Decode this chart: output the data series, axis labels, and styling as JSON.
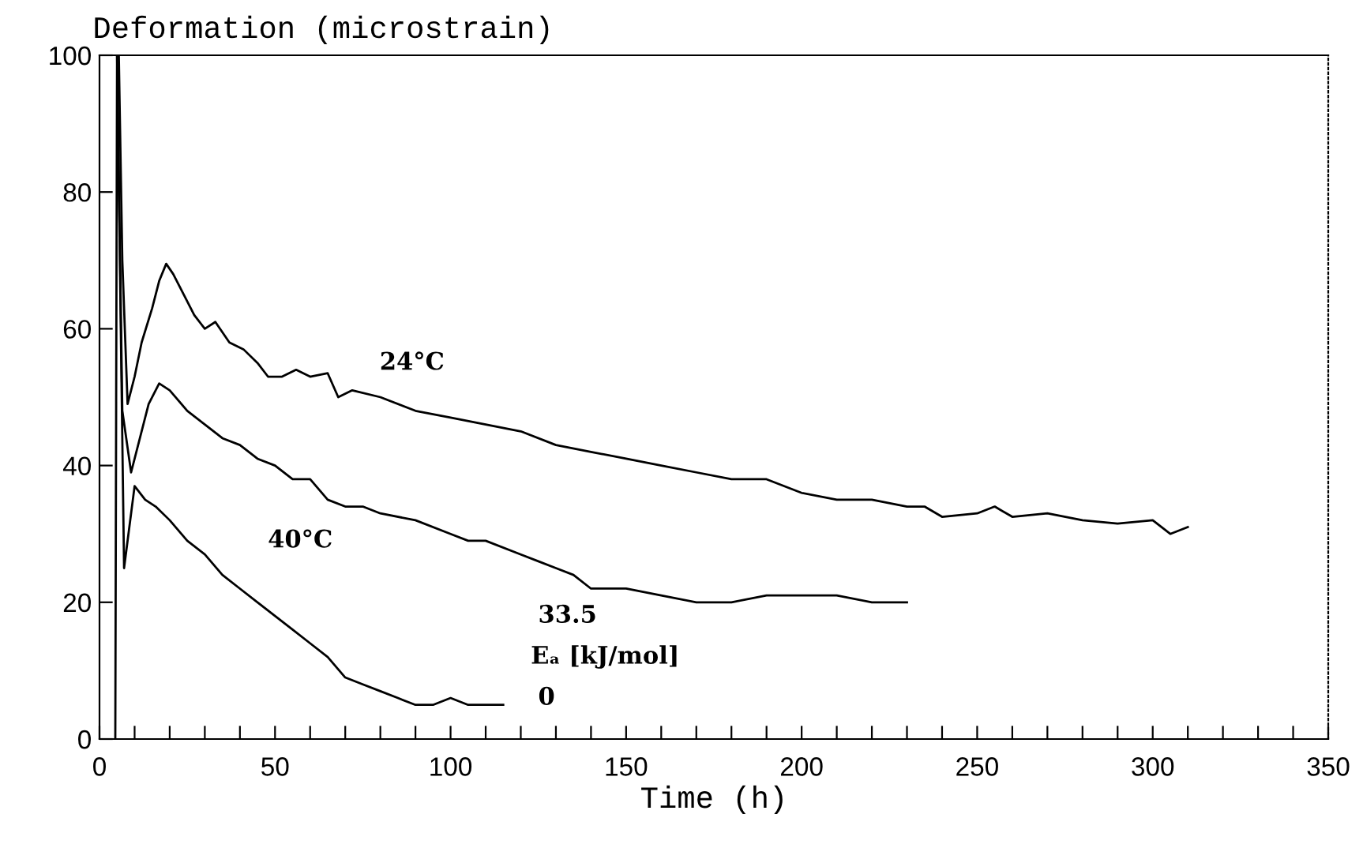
{
  "chart_data": {
    "type": "line",
    "ylabel": "Deformation (microstrain)",
    "xlabel": "Time (h)",
    "xlim": [
      0,
      350
    ],
    "ylim": [
      0,
      100
    ],
    "xticks": [
      0,
      {
        "value": 10,
        "label": null
      },
      {
        "value": 20,
        "label": null
      },
      {
        "value": 30,
        "label": null
      },
      {
        "value": 40,
        "label": null
      },
      50,
      {
        "value": 60,
        "label": null
      },
      {
        "value": 70,
        "label": null
      },
      {
        "value": 80,
        "label": null
      },
      {
        "value": 90,
        "label": null
      },
      100,
      {
        "value": 110,
        "label": null
      },
      {
        "value": 120,
        "label": null
      },
      {
        "value": 130,
        "label": null
      },
      {
        "value": 140,
        "label": null
      },
      150,
      {
        "value": 160,
        "label": null
      },
      {
        "value": 170,
        "label": null
      },
      {
        "value": 180,
        "label": null
      },
      {
        "value": 190,
        "label": null
      },
      200,
      {
        "value": 210,
        "label": null
      },
      {
        "value": 220,
        "label": null
      },
      {
        "value": 230,
        "label": null
      },
      {
        "value": 240,
        "label": null
      },
      250,
      {
        "value": 260,
        "label": null
      },
      {
        "value": 270,
        "label": null
      },
      {
        "value": 280,
        "label": null
      },
      {
        "value": 290,
        "label": null
      },
      300,
      {
        "value": 310,
        "label": null
      },
      {
        "value": 320,
        "label": null
      },
      {
        "value": 330,
        "label": null
      },
      {
        "value": 340,
        "label": null
      },
      350
    ],
    "yticks": [
      0,
      20,
      40,
      60,
      80,
      100
    ],
    "grid": false,
    "legend": false,
    "series": [
      {
        "color": "#000000",
        "x": [
          5.5,
          6.5,
          8,
          10,
          12,
          15,
          17,
          19,
          21,
          24,
          27,
          30,
          33,
          37,
          41,
          45,
          48,
          52,
          56,
          60,
          65,
          68,
          72,
          80,
          90,
          100,
          110,
          120,
          130,
          140,
          150,
          160,
          170,
          180,
          190,
          200,
          210,
          220,
          230,
          235,
          240,
          250,
          255,
          260,
          270,
          280,
          290,
          300,
          305,
          310
        ],
        "values": [
          100,
          70,
          49,
          53,
          58,
          63,
          67,
          69.5,
          68,
          65,
          62,
          60,
          61,
          58,
          57,
          55,
          53,
          53,
          54,
          53,
          53.5,
          50,
          51,
          50,
          48,
          47,
          46,
          45,
          43,
          42,
          41,
          40,
          39,
          38,
          38,
          36,
          35,
          35,
          34,
          34,
          32.5,
          33,
          34,
          32.5,
          33,
          32,
          31.5,
          32,
          30,
          31
        ]
      },
      {
        "color": "#000000",
        "x": [
          5,
          6.5,
          9,
          11,
          14,
          17,
          20,
          25,
          30,
          35,
          40,
          45,
          50,
          55,
          60,
          65,
          70,
          75,
          80,
          90,
          100,
          105,
          110,
          120,
          125,
          130,
          135,
          140,
          150,
          160,
          170,
          180,
          190,
          200,
          210,
          220,
          230
        ],
        "values": [
          100,
          48,
          39,
          43,
          49,
          52,
          51,
          48,
          46,
          44,
          43,
          41,
          40,
          38,
          38,
          35,
          34,
          34,
          33,
          32,
          30,
          29,
          29,
          27,
          26,
          25,
          24,
          22,
          22,
          21,
          20,
          20,
          21,
          21,
          21,
          20,
          20
        ]
      },
      {
        "color": "#000000",
        "x": [
          4.5,
          5,
          7,
          10,
          13,
          16,
          20,
          25,
          30,
          35,
          40,
          45,
          50,
          55,
          60,
          65,
          70,
          75,
          80,
          85,
          90,
          95,
          100,
          105,
          110,
          115
        ],
        "values": [
          0,
          100,
          25,
          37,
          35,
          34,
          32,
          29,
          27,
          24,
          22,
          20,
          18,
          16,
          14,
          12,
          9,
          8,
          7,
          6,
          5,
          5,
          6,
          5,
          5,
          5
        ]
      }
    ],
    "line_style": "solid",
    "marker": "none",
    "annotations": [
      "24°C",
      "40°C",
      "33.5",
      "Eₐ [kJ/mol]",
      "0"
    ]
  }
}
